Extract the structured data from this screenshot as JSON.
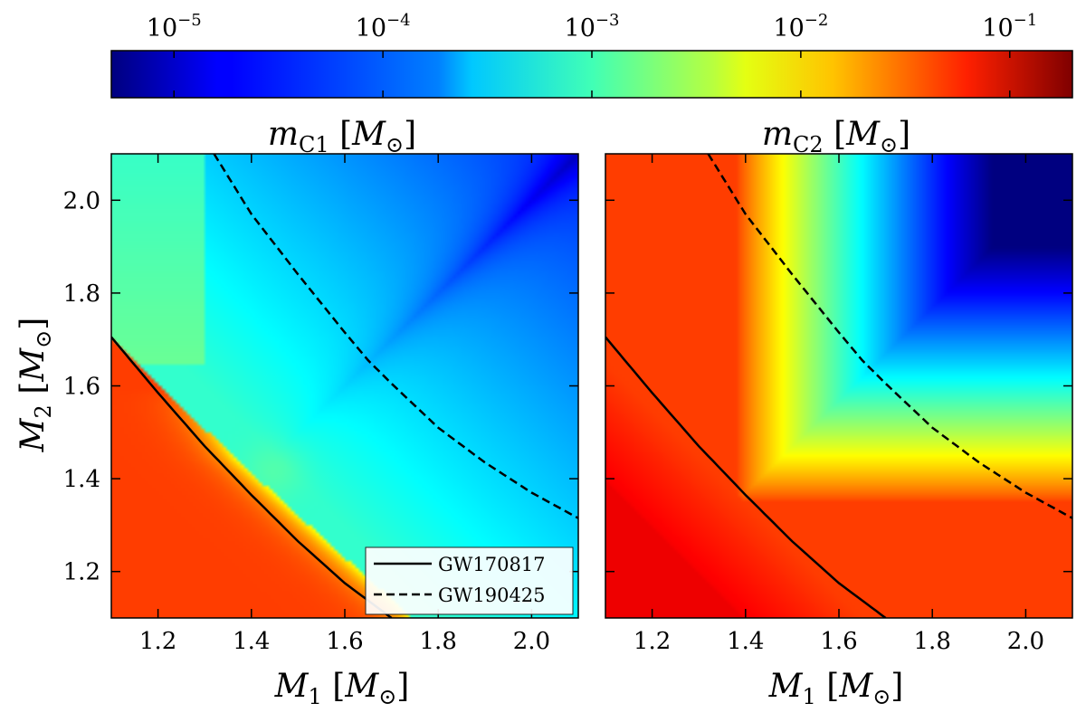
{
  "chart_data": {
    "type": "heatmap",
    "scale": "log",
    "colormap": "jet",
    "colorbar": {
      "min_exp": -5.3,
      "max_exp": -0.7,
      "ticks": [
        {
          "exp": -5,
          "base": "10",
          "sup": "−5"
        },
        {
          "exp": -4,
          "base": "10",
          "sup": "−4"
        },
        {
          "exp": -3,
          "base": "10",
          "sup": "−3"
        },
        {
          "exp": -2,
          "base": "10",
          "sup": "−2"
        },
        {
          "exp": -1,
          "base": "10",
          "sup": "−1"
        }
      ]
    },
    "xlim": [
      1.1,
      2.1
    ],
    "ylim": [
      1.1,
      2.1
    ],
    "xticks": [
      1.2,
      1.4,
      1.6,
      1.8,
      2.0
    ],
    "yticks": [
      1.2,
      1.4,
      1.6,
      1.8,
      2.0
    ],
    "xtick_labels": [
      "1.2",
      "1.4",
      "1.6",
      "1.8",
      "2.0"
    ],
    "ytick_labels": [
      "1.2",
      "1.4",
      "1.6",
      "1.8",
      "2.0"
    ],
    "xlabel": {
      "main": "M",
      "sub": "1",
      "unit": "M",
      "unit_sub": "⊙"
    },
    "ylabel": {
      "main": "M",
      "sub": "2",
      "unit": "M",
      "unit_sub": "⊙"
    },
    "curves": [
      {
        "name": "GW170817",
        "style": "solid",
        "points": [
          [
            1.1,
            1.705
          ],
          [
            1.2,
            1.585
          ],
          [
            1.3,
            1.47
          ],
          [
            1.4,
            1.365
          ],
          [
            1.5,
            1.265
          ],
          [
            1.6,
            1.175
          ],
          [
            1.7,
            1.1
          ]
        ]
      },
      {
        "name": "GW190425",
        "style": "dashed",
        "points": [
          [
            1.32,
            2.1
          ],
          [
            1.4,
            1.97
          ],
          [
            1.5,
            1.84
          ],
          [
            1.6,
            1.715
          ],
          [
            1.65,
            1.655
          ],
          [
            1.7,
            1.605
          ],
          [
            1.8,
            1.51
          ],
          [
            1.9,
            1.435
          ],
          [
            2.0,
            1.37
          ],
          [
            2.1,
            1.315
          ]
        ]
      }
    ],
    "legend": {
      "placement": "lower-right",
      "panel": 0,
      "entries": [
        "GW170817",
        "GW190425"
      ]
    },
    "panels": [
      {
        "title": {
          "main": "m",
          "sub": "C1",
          "unit": "M",
          "unit_sub": "⊙"
        },
        "description_values_log10": {
          "below_boundary_region": -1.4,
          "boundary_band_max": -2.3,
          "upper_left_region": -3.5,
          "diagonal_minimum_at_2.1": -5.1,
          "upper_right_corner": -5.3
        }
      },
      {
        "title": {
          "main": "m",
          "sub": "C2",
          "unit": "M",
          "unit_sub": "⊙"
        },
        "description_values_log10": {
          "outer_region": -1.55,
          "ring_yellow": -2.3,
          "ring_cyan": -3.5,
          "upper_right_corner": -5.3,
          "lower_left_corner": -1.1
        }
      }
    ]
  }
}
